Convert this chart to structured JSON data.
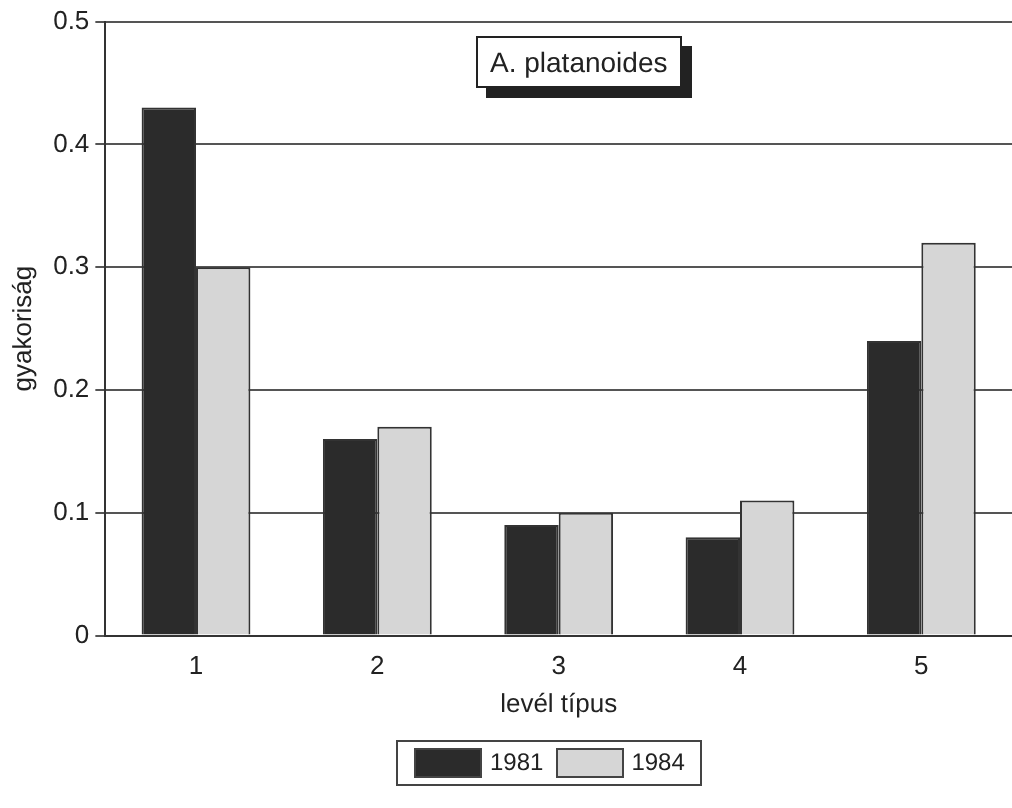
{
  "chart_data": {
    "type": "bar",
    "title": "A. platanoides",
    "xlabel": "levél típus",
    "ylabel": "gyakoriság",
    "categories": [
      "1",
      "2",
      "3",
      "4",
      "5"
    ],
    "series": [
      {
        "name": "1981",
        "color": "#2b2b2b",
        "values": [
          0.43,
          0.16,
          0.09,
          0.08,
          0.24
        ]
      },
      {
        "name": "1984",
        "color": "#d6d6d6",
        "values": [
          0.3,
          0.17,
          0.1,
          0.11,
          0.32
        ]
      }
    ],
    "ylim": [
      0,
      0.5
    ],
    "yticks": [
      0,
      0.1,
      0.2,
      0.3,
      0.4,
      0.5
    ],
    "grid": "y",
    "legend": "bottom"
  }
}
